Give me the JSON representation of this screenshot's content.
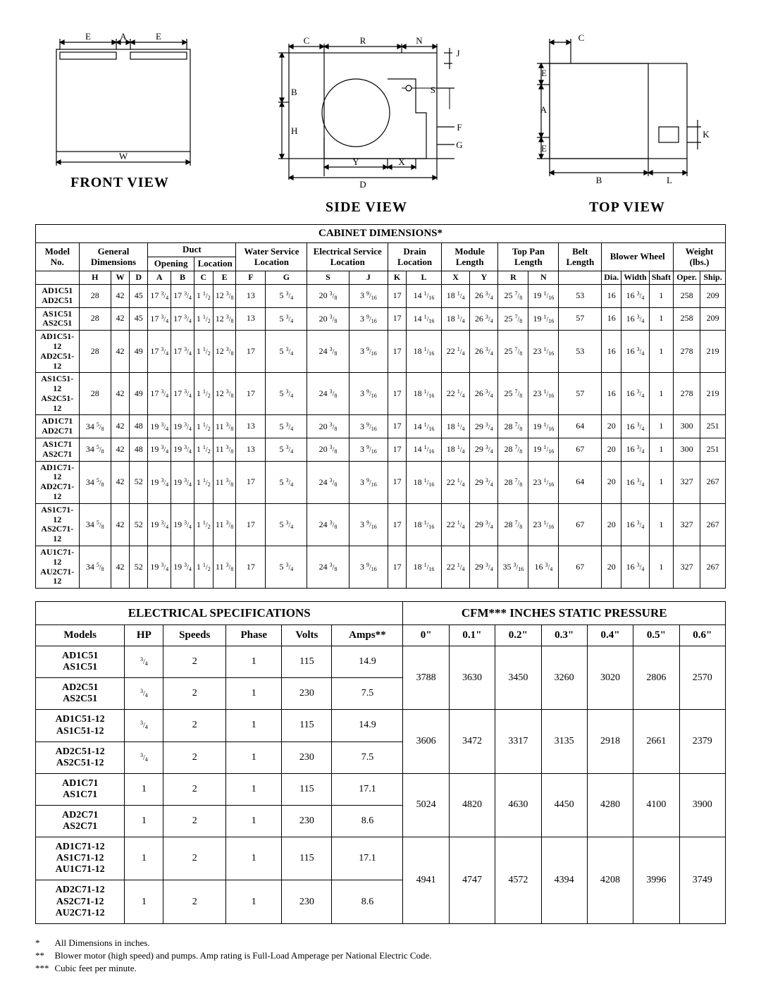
{
  "views": {
    "front": "FRONT VIEW",
    "side": "SIDE VIEW",
    "top": "TOP VIEW"
  },
  "cabinet": {
    "title": "CABINET DIMENSIONS*",
    "groups": {
      "model": "Model No.",
      "general": "General Dimensions",
      "duct": "Duct",
      "duct_open": "Opening",
      "duct_loc": "Location",
      "water": "Water Service Location",
      "elec": "Electrical Service Location",
      "drain": "Drain Location",
      "module": "Module Length",
      "toppan": "Top Pan Length",
      "belt": "Belt Length",
      "blower": "Blower Wheel",
      "weight": "Weight (lbs.)"
    },
    "cols": [
      "H",
      "W",
      "D",
      "A",
      "B",
      "C",
      "E",
      "F",
      "G",
      "S",
      "J",
      "K",
      "L",
      "X",
      "Y",
      "R",
      "N",
      "",
      "Dia.",
      "Width",
      "Shaft",
      "Oper.",
      "Ship."
    ],
    "rows": [
      {
        "m": [
          "AD1C51",
          "AD2C51"
        ],
        "v": [
          "28",
          "42",
          "45",
          "17 3/4",
          "17 3/4",
          "1 1/2",
          "12 3/8",
          "13",
          "5 3/4",
          "20 3/8",
          "3 9/16",
          "17",
          "14 1/16",
          "18 1/4",
          "26 3/4",
          "25 7/8",
          "19 1/16",
          "53",
          "16",
          "16 3/4",
          "1",
          "258",
          "209"
        ]
      },
      {
        "m": [
          "AS1C51",
          "AS2C51"
        ],
        "v": [
          "28",
          "42",
          "45",
          "17 3/4",
          "17 3/4",
          "1 1/2",
          "12 3/8",
          "13",
          "5 3/4",
          "20 3/8",
          "3 9/16",
          "17",
          "14 1/16",
          "18 1/4",
          "26 3/4",
          "25 7/8",
          "19 1/16",
          "57",
          "16",
          "16 3/4",
          "1",
          "258",
          "209"
        ]
      },
      {
        "m": [
          "AD1C51-12",
          "AD2C51-12"
        ],
        "v": [
          "28",
          "42",
          "49",
          "17 3/4",
          "17 3/4",
          "1 1/2",
          "12 3/8",
          "17",
          "5 3/4",
          "24 3/8",
          "3 9/16",
          "17",
          "18 1/16",
          "22 1/4",
          "26 3/4",
          "25 7/8",
          "23 1/16",
          "53",
          "16",
          "16 3/4",
          "1",
          "278",
          "219"
        ]
      },
      {
        "m": [
          "AS1C51-12",
          "AS2C51-12"
        ],
        "v": [
          "28",
          "42",
          "49",
          "17 3/4",
          "17 3/4",
          "1 1/2",
          "12 3/8",
          "17",
          "5 3/4",
          "24 3/8",
          "3 9/16",
          "17",
          "18 1/16",
          "22 1/4",
          "26 3/4",
          "25 7/8",
          "23 1/16",
          "57",
          "16",
          "16 3/4",
          "1",
          "278",
          "219"
        ]
      },
      {
        "m": [
          "AD1C71",
          "AD2C71"
        ],
        "v": [
          "34 5/8",
          "42",
          "48",
          "19 3/4",
          "19 3/4",
          "1 1/2",
          "11 3/8",
          "13",
          "5 3/4",
          "20 3/8",
          "3 9/16",
          "17",
          "14 1/16",
          "18 1/4",
          "29 3/4",
          "28 7/8",
          "19 1/16",
          "64",
          "20",
          "16 3/4",
          "1",
          "300",
          "251"
        ]
      },
      {
        "m": [
          "AS1C71",
          "AS2C71"
        ],
        "v": [
          "34 5/8",
          "42",
          "48",
          "19 3/4",
          "19 3/4",
          "1 1/2",
          "11 3/8",
          "13",
          "5 3/4",
          "20 3/8",
          "3 9/16",
          "17",
          "14 1/16",
          "18 1/4",
          "29 3/4",
          "28 7/8",
          "19 1/16",
          "67",
          "20",
          "16 3/4",
          "1",
          "300",
          "251"
        ]
      },
      {
        "m": [
          "AD1C71-12",
          "AD2C71-12"
        ],
        "v": [
          "34 5/8",
          "42",
          "52",
          "19 3/4",
          "19 3/4",
          "1 1/2",
          "11 3/8",
          "17",
          "5 3/4",
          "24 3/8",
          "3 9/16",
          "17",
          "18 1/16",
          "22 1/4",
          "29 3/4",
          "28 7/8",
          "23 1/16",
          "64",
          "20",
          "16 3/4",
          "1",
          "327",
          "267"
        ]
      },
      {
        "m": [
          "AS1C71-12",
          "AS2C71-12"
        ],
        "v": [
          "34 5/8",
          "42",
          "52",
          "19 3/4",
          "19 3/4",
          "1 1/2",
          "11 3/8",
          "17",
          "5 3/4",
          "24 3/8",
          "3 9/16",
          "17",
          "18 1/16",
          "22 1/4",
          "29 3/4",
          "28 7/8",
          "23 1/16",
          "67",
          "20",
          "16 3/4",
          "1",
          "327",
          "267"
        ]
      },
      {
        "m": [
          "AU1C71-12",
          "AU2C71-12"
        ],
        "v": [
          "34 5/8",
          "42",
          "52",
          "19 3/4",
          "19 3/4",
          "1 1/2",
          "11 3/8",
          "17",
          "5 3/4",
          "24 3/8",
          "3 9/16",
          "17",
          "18 1/16",
          "22 1/4",
          "29 3/4",
          "35 3/16",
          "16 3/4",
          "67",
          "20",
          "16 3/4",
          "1",
          "327",
          "267"
        ]
      }
    ]
  },
  "elec": {
    "title1": "ELECTRICAL SPECIFICATIONS",
    "title2": "CFM***   INCHES STATIC PRESSURE",
    "cols1": [
      "Models",
      "HP",
      "Speeds",
      "Phase",
      "Volts",
      "Amps**"
    ],
    "cols2": [
      "0\"",
      "0.1\"",
      "0.2\"",
      "0.3\"",
      "0.4\"",
      "0.5\"",
      "0.6\""
    ],
    "blocks": [
      {
        "top": {
          "m": [
            "AD1C51",
            "AS1C51"
          ],
          "hp": "3/4",
          "sp": "2",
          "ph": "1",
          "v": "115",
          "a": "14.9"
        },
        "bot": {
          "m": [
            "AD2C51",
            "AS2C51"
          ],
          "hp": "3/4",
          "sp": "2",
          "ph": "1",
          "v": "230",
          "a": "7.5"
        },
        "cfm": [
          "3788",
          "3630",
          "3450",
          "3260",
          "3020",
          "2806",
          "2570"
        ]
      },
      {
        "top": {
          "m": [
            "AD1C51-12",
            "AS1C51-12"
          ],
          "hp": "3/4",
          "sp": "2",
          "ph": "1",
          "v": "115",
          "a": "14.9"
        },
        "bot": {
          "m": [
            "AD2C51-12",
            "AS2C51-12"
          ],
          "hp": "3/4",
          "sp": "2",
          "ph": "1",
          "v": "230",
          "a": "7.5"
        },
        "cfm": [
          "3606",
          "3472",
          "3317",
          "3135",
          "2918",
          "2661",
          "2379"
        ]
      },
      {
        "top": {
          "m": [
            "AD1C71",
            "AS1C71"
          ],
          "hp": "1",
          "sp": "2",
          "ph": "1",
          "v": "115",
          "a": "17.1"
        },
        "bot": {
          "m": [
            "AD2C71",
            "AS2C71"
          ],
          "hp": "1",
          "sp": "2",
          "ph": "1",
          "v": "230",
          "a": "8.6"
        },
        "cfm": [
          "5024",
          "4820",
          "4630",
          "4450",
          "4280",
          "4100",
          "3900"
        ]
      },
      {
        "top": {
          "m": [
            "AD1C71-12",
            "AS1C71-12",
            "AU1C71-12"
          ],
          "hp": "1",
          "sp": "2",
          "ph": "1",
          "v": "115",
          "a": "17.1"
        },
        "bot": {
          "m": [
            "AD2C71-12",
            "AS2C71-12",
            "AU2C71-12"
          ],
          "hp": "1",
          "sp": "2",
          "ph": "1",
          "v": "230",
          "a": "8.6"
        },
        "cfm": [
          "4941",
          "4747",
          "4572",
          "4394",
          "4208",
          "3996",
          "3749"
        ]
      }
    ]
  },
  "notes": [
    [
      "*",
      "All Dimensions in inches."
    ],
    [
      "**",
      "Blower motor (high speed) and pumps.  Amp rating is Full-Load Amperage per National Electric Code."
    ],
    [
      "***",
      "Cubic feet per minute."
    ]
  ],
  "svg": {
    "stroke": "#000",
    "fill": "none",
    "dim_font": "13px"
  }
}
